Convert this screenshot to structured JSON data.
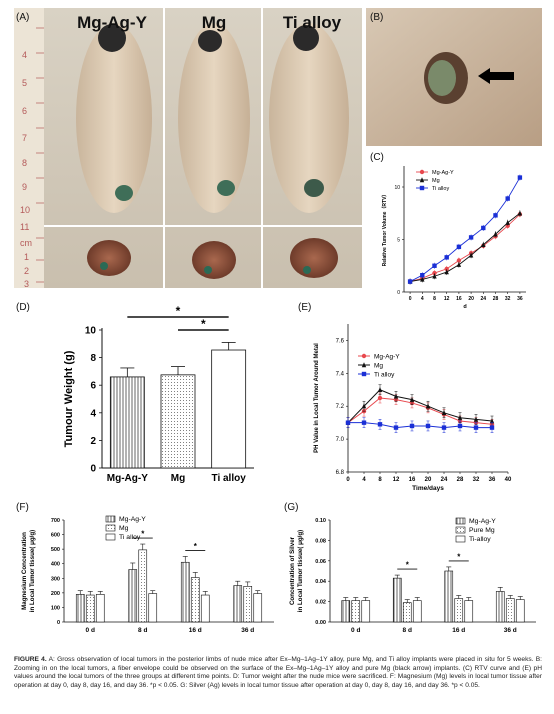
{
  "panel_a": {
    "label": "(A)",
    "groups": [
      "Mg-Ag-Y",
      "Mg",
      "Ti alloy"
    ],
    "ruler_numbers": [
      "4",
      "5",
      "6",
      "7",
      "8",
      "9",
      "10",
      "11"
    ],
    "ruler_lower_numbers": [
      "1",
      "2",
      "3"
    ],
    "ruler_unit": "cm"
  },
  "panel_b": {
    "label": "(B)"
  },
  "panel_c": {
    "label": "(C)",
    "chart_data": {
      "type": "line",
      "x": [
        0,
        4,
        8,
        12,
        16,
        20,
        24,
        28,
        32,
        36
      ],
      "xticks": [
        "0",
        "4",
        "8",
        "12",
        "16",
        "20",
        "24",
        "28",
        "32",
        "36"
      ],
      "yticks": [
        "0",
        "5",
        "10"
      ],
      "ylim": [
        0,
        12
      ],
      "xlabel": "d",
      "ylabel": "Relative Tumor Volume（RTV）",
      "series": [
        {
          "name": "Mg-Ag-Y",
          "color": "#e8484e",
          "values": [
            1.0,
            1.3,
            1.8,
            2.2,
            3.0,
            3.7,
            4.4,
            5.3,
            6.3,
            7.4
          ]
        },
        {
          "name": "Mg",
          "color": "#111111",
          "values": [
            1.0,
            1.2,
            1.5,
            1.9,
            2.6,
            3.5,
            4.5,
            5.5,
            6.6,
            7.5
          ]
        },
        {
          "name": "Ti alloy",
          "color": "#1a2fd6",
          "values": [
            1.0,
            1.6,
            2.5,
            3.3,
            4.3,
            5.2,
            6.1,
            7.3,
            8.9,
            10.9
          ]
        }
      ]
    }
  },
  "panel_d": {
    "label": "(D)",
    "chart_data": {
      "type": "bar",
      "categories": [
        "Mg-Ag-Y",
        "Mg",
        "Ti alloy"
      ],
      "values": [
        6.6,
        6.75,
        8.55
      ],
      "errors": [
        0.65,
        0.6,
        0.55
      ],
      "ylim": [
        0,
        10
      ],
      "yticks": [
        "0",
        "2",
        "4",
        "6",
        "8",
        "10"
      ],
      "ylabel": "Tumour Weight (g)",
      "significance": [
        "*",
        "*"
      ]
    }
  },
  "panel_e": {
    "label": "(E)",
    "chart_data": {
      "type": "line",
      "x": [
        0,
        4,
        8,
        12,
        16,
        20,
        24,
        28,
        32,
        36
      ],
      "xticks": [
        "0",
        "4",
        "8",
        "12",
        "16",
        "20",
        "24",
        "28",
        "32",
        "36",
        "40"
      ],
      "yticks": [
        "6.8",
        "7.0",
        "7.2",
        "7.4",
        "7.6"
      ],
      "ylim": [
        6.8,
        7.7
      ],
      "xlabel": "Time/days",
      "ylabel": "PH Value in Local Tumor Around Metal",
      "series": [
        {
          "name": "Mg-Ag-Y",
          "color": "#e8484e",
          "values": [
            7.1,
            7.17,
            7.25,
            7.24,
            7.22,
            7.19,
            7.15,
            7.11,
            7.1,
            7.09
          ]
        },
        {
          "name": "Mg",
          "color": "#111111",
          "values": [
            7.1,
            7.2,
            7.3,
            7.26,
            7.24,
            7.2,
            7.16,
            7.13,
            7.12,
            7.11
          ]
        },
        {
          "name": "Ti alloy",
          "color": "#1a2fd6",
          "values": [
            7.1,
            7.1,
            7.09,
            7.07,
            7.08,
            7.08,
            7.07,
            7.08,
            7.07,
            7.07
          ]
        }
      ]
    }
  },
  "panel_f": {
    "label": "(F)",
    "chart_data": {
      "type": "bar",
      "categories": [
        "0 d",
        "8 d",
        "16 d",
        "36 d"
      ],
      "ylim": [
        0,
        700
      ],
      "yticks": [
        "0",
        "100",
        "200",
        "300",
        "400",
        "500",
        "600",
        "700"
      ],
      "ylabel": "Magnesium Concentration in Local Tumor tissue( μg/g)",
      "significance": [
        "*",
        "*"
      ],
      "series": [
        {
          "name": "Mg-Ag-Y",
          "values": [
            190,
            360,
            410,
            250
          ],
          "errors": [
            25,
            45,
            40,
            30
          ]
        },
        {
          "name": "Mg",
          "values": [
            185,
            495,
            305,
            245
          ],
          "errors": [
            25,
            40,
            35,
            30
          ]
        },
        {
          "name": "Ti alloy",
          "values": [
            190,
            195,
            185,
            195
          ],
          "errors": [
            20,
            20,
            25,
            20
          ]
        }
      ]
    }
  },
  "panel_g": {
    "label": "(G)",
    "chart_data": {
      "type": "bar",
      "categories": [
        "0 d",
        "8 d",
        "16 d",
        "36 d"
      ],
      "ylim": [
        0,
        0.1
      ],
      "yticks": [
        "0.00",
        "0.02",
        "0.04",
        "0.06",
        "0.08",
        "0.10"
      ],
      "ylabel": "Concentration of Silver in Local Tumor tissue( μg/g)",
      "significance": [
        "*",
        "*"
      ],
      "series": [
        {
          "name": "Mg-Ag-Y",
          "values": [
            0.021,
            0.043,
            0.05,
            0.03
          ],
          "errors": [
            0.003,
            0.003,
            0.004,
            0.004
          ]
        },
        {
          "name": "Pure Mg",
          "values": [
            0.021,
            0.019,
            0.023,
            0.023
          ],
          "errors": [
            0.003,
            0.003,
            0.003,
            0.003
          ]
        },
        {
          "name": "Ti-alloy",
          "values": [
            0.021,
            0.021,
            0.021,
            0.022
          ],
          "errors": [
            0.003,
            0.003,
            0.003,
            0.003
          ]
        }
      ]
    }
  },
  "caption": {
    "lead": "FIGURE 4.",
    "text": "A: Gross observation of local tumors in the posterior limbs of nude mice after Ex–Mg–1Ag–1Y alloy, pure Mg, and Ti alloy implants were placed in situ for 5 weeks. B: Zooming in on the local tumors, a fiber envelope could be observed on the surface of the Ex–Mg–1Ag–1Y alloy and pure Mg (black arrow) implants. (C) RTV curve and (E) pH values around the local tumors of the three groups at different time points. D: Tumor weight after the nude mice were sacrificed. F: Magnesium (Mg) levels in local tumor tissue after operation at day 0, day 8, day 16, and day 36. *p < 0.05. G: Silver (Ag) levels in local tumor tissue after operation at day 0, day 8, day 16, and day 36. *p < 0.05."
  }
}
